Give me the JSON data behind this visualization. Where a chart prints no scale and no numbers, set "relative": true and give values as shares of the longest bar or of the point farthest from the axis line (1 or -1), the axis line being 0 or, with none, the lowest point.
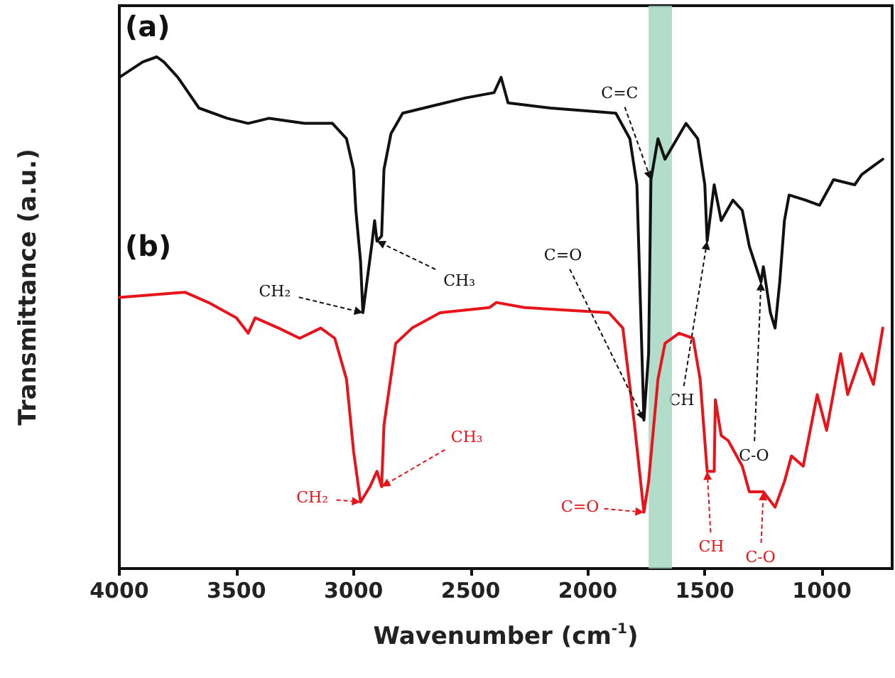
{
  "chart_data": {
    "type": "line",
    "xlabel": "Wavenumber (cm$^{-1}$)",
    "ylabel": "Transmittance (a.u.)",
    "relative": true,
    "marker": "none",
    "line_style": "solid",
    "grid": false,
    "xlim": [
      4000,
      700
    ],
    "xticks": [
      4000,
      3500,
      3000,
      2500,
      2000,
      1500,
      1000
    ],
    "bands": [
      {
        "axis": "x",
        "from": 1740,
        "to": 1640,
        "color": "#9fd4bd"
      }
    ],
    "series": [
      {
        "name": "(a)",
        "color": "#111111",
        "x": [
          4000,
          3900,
          3840,
          3810,
          3750,
          3660,
          3540,
          3450,
          3360,
          3210,
          3090,
          3030,
          3000,
          2990,
          2970,
          2960,
          2940,
          2920,
          2910,
          2900,
          2880,
          2870,
          2840,
          2790,
          2700,
          2520,
          2400,
          2370,
          2340,
          2160,
          1880,
          1820,
          1790,
          1760,
          1740,
          1730,
          1700,
          1670,
          1580,
          1530,
          1500,
          1490,
          1460,
          1430,
          1380,
          1340,
          1310,
          1260,
          1250,
          1220,
          1200,
          1180,
          1160,
          1140,
          1070,
          1010,
          950,
          860,
          830,
          770,
          740
        ],
        "values": [
          0.96,
          0.99,
          1.0,
          0.99,
          0.96,
          0.9,
          0.88,
          0.87,
          0.88,
          0.87,
          0.87,
          0.84,
          0.78,
          0.7,
          0.6,
          0.5,
          0.57,
          0.64,
          0.68,
          0.64,
          0.65,
          0.78,
          0.85,
          0.89,
          0.9,
          0.92,
          0.93,
          0.96,
          0.91,
          0.9,
          0.89,
          0.84,
          0.75,
          0.29,
          0.42,
          0.76,
          0.84,
          0.8,
          0.87,
          0.84,
          0.75,
          0.64,
          0.75,
          0.68,
          0.72,
          0.7,
          0.63,
          0.56,
          0.59,
          0.5,
          0.47,
          0.56,
          0.68,
          0.73,
          0.72,
          0.71,
          0.76,
          0.75,
          0.77,
          0.79,
          0.8
        ]
      },
      {
        "name": "(b)",
        "color": "#e8141b",
        "x": [
          4000,
          3720,
          3620,
          3500,
          3450,
          3420,
          3320,
          3230,
          3140,
          3080,
          3030,
          3000,
          2970,
          2930,
          2900,
          2880,
          2870,
          2820,
          2750,
          2630,
          2420,
          2390,
          2270,
          1910,
          1850,
          1800,
          1760,
          1740,
          1700,
          1670,
          1610,
          1550,
          1520,
          1490,
          1460,
          1455,
          1430,
          1400,
          1340,
          1310,
          1250,
          1200,
          1160,
          1130,
          1080,
          1020,
          980,
          920,
          890,
          830,
          780,
          740
        ],
        "values": [
          0.53,
          0.54,
          0.52,
          0.49,
          0.46,
          0.49,
          0.47,
          0.45,
          0.47,
          0.45,
          0.37,
          0.23,
          0.13,
          0.16,
          0.19,
          0.16,
          0.28,
          0.44,
          0.47,
          0.5,
          0.51,
          0.52,
          0.51,
          0.5,
          0.47,
          0.28,
          0.11,
          0.17,
          0.37,
          0.44,
          0.46,
          0.45,
          0.37,
          0.19,
          0.19,
          0.33,
          0.26,
          0.25,
          0.2,
          0.15,
          0.15,
          0.12,
          0.17,
          0.22,
          0.2,
          0.34,
          0.27,
          0.42,
          0.34,
          0.42,
          0.36,
          0.47
        ]
      }
    ],
    "annotations": [
      {
        "text": "CH₂",
        "x": 2960,
        "y": 0.5
      },
      {
        "text": "CH₃",
        "x": 2900,
        "y": 0.64
      },
      {
        "text": "C=C",
        "x": 1730,
        "y": 0.76
      },
      {
        "text": "C=O",
        "x": 1760,
        "y": 0.29
      },
      {
        "text": "CH",
        "x": 1490,
        "y": 0.64
      },
      {
        "text": "C-O",
        "x": 1260,
        "y": 0.56
      },
      {
        "text": "CH₂",
        "x": 2970,
        "y": 0.13
      },
      {
        "text": "CH₃",
        "x": 2880,
        "y": 0.16
      },
      {
        "text": "C=O",
        "x": 1760,
        "y": 0.11
      },
      {
        "text": "CH",
        "x": 1490,
        "y": 0.19
      },
      {
        "text": "C-O",
        "x": 1250,
        "y": 0.15
      }
    ]
  }
}
